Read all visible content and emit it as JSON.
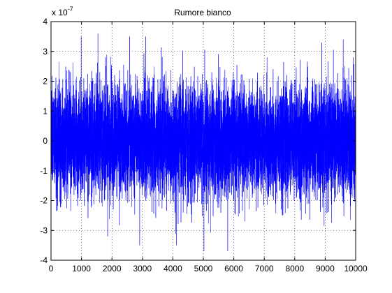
{
  "chart_data": {
    "type": "line",
    "title": "Rumore bianco",
    "xlabel": "",
    "ylabel": "",
    "y_multiplier": {
      "base": "x 10",
      "exponent": "-7"
    },
    "xlim": [
      0,
      10000
    ],
    "ylim": [
      -4,
      4
    ],
    "x_ticks": [
      "0",
      "1000",
      "2000",
      "3000",
      "4000",
      "5000",
      "6000",
      "7000",
      "8000",
      "9000",
      "10000"
    ],
    "y_ticks": [
      "-4",
      "-3",
      "-2",
      "-1",
      "0",
      "1",
      "2",
      "3",
      "4"
    ],
    "grid": true,
    "grid_style": "dotted",
    "series": [
      {
        "color": "#0000ff",
        "n_samples": 10000,
        "distribution": "gaussian white noise",
        "mean": 0,
        "std": 0.9,
        "units_scale": "1e-7",
        "notable_peaks": [
          {
            "x": 990,
            "y": 3.5
          },
          {
            "x": 1540,
            "y": 3.6
          },
          {
            "x": 2580,
            "y": 3.5
          },
          {
            "x": 3110,
            "y": 3.5
          },
          {
            "x": 9590,
            "y": 3.4
          },
          {
            "x": 5020,
            "y": -3.7
          },
          {
            "x": 5800,
            "y": -3.7
          },
          {
            "x": 2910,
            "y": -3.5
          },
          {
            "x": 4120,
            "y": -3.5
          },
          {
            "x": 1860,
            "y": -3.2
          }
        ]
      }
    ]
  },
  "colors": {
    "axes": "#000000",
    "grid": "#000000",
    "background": "#ffffff",
    "series": "#0000ff"
  }
}
